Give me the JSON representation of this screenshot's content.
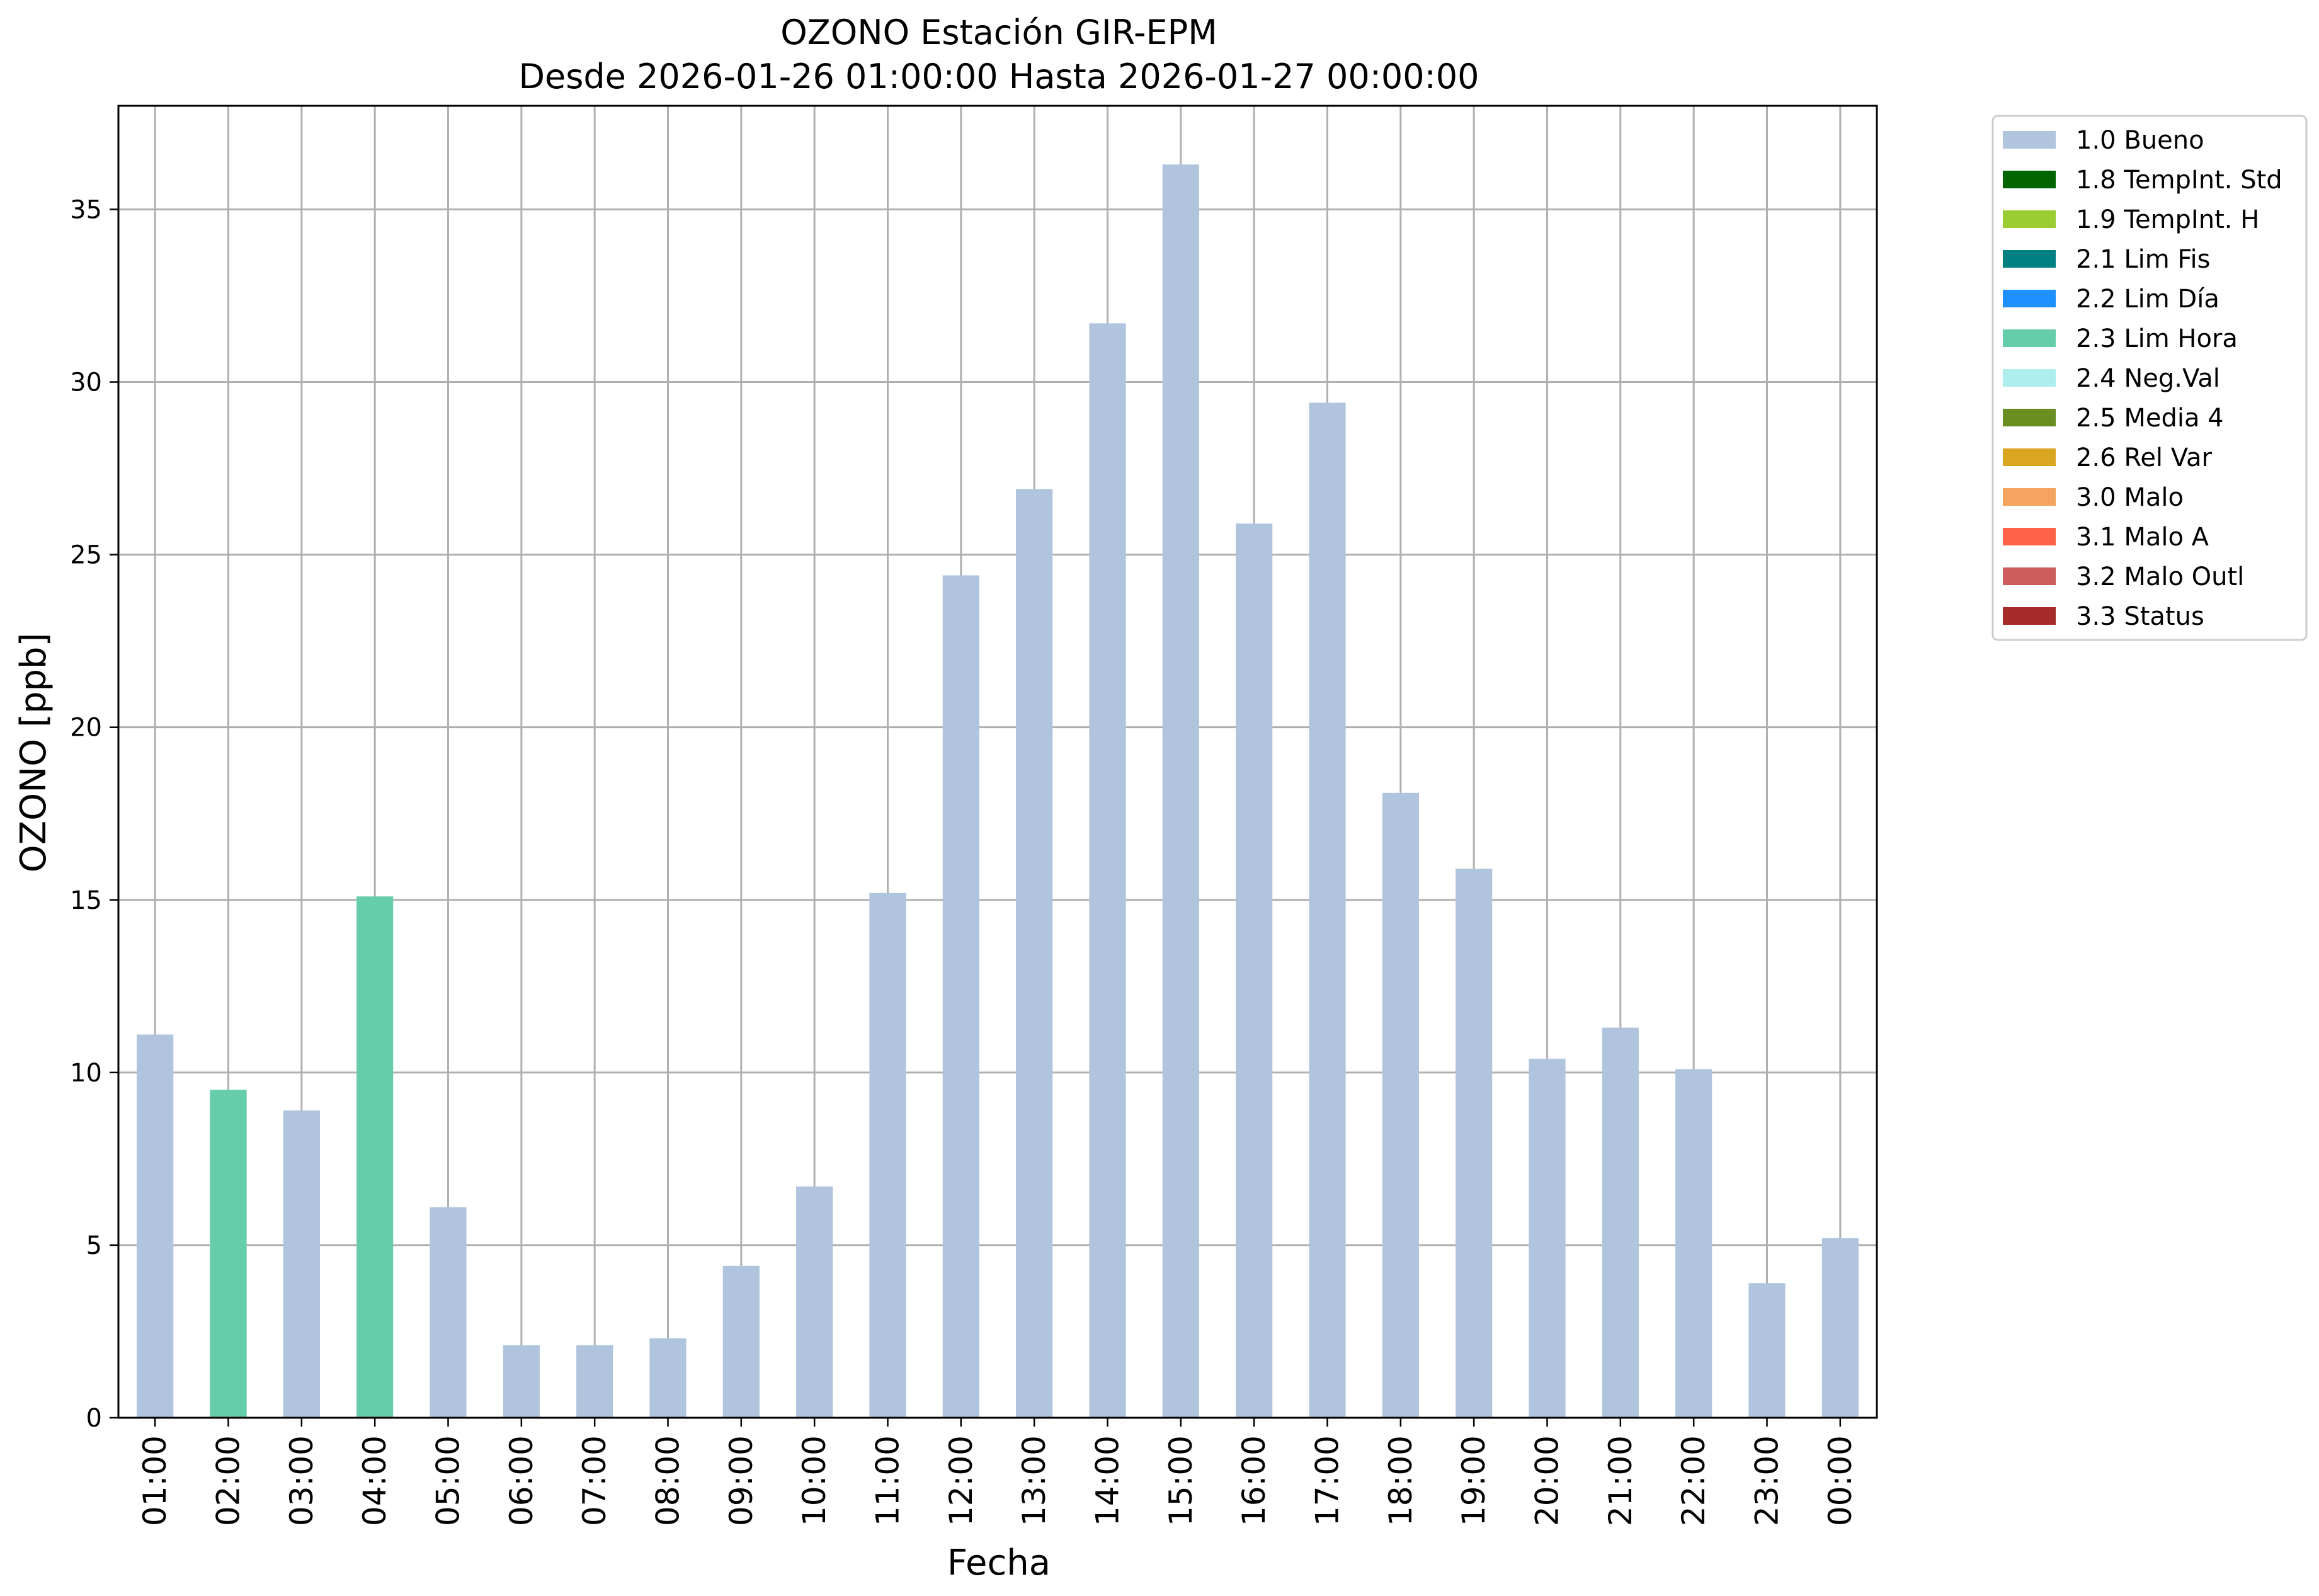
{
  "chart_data": {
    "type": "bar",
    "title": "OZONO Estación GIR-EPM",
    "subtitle": "Desde 2026-01-26 01:00:00 Hasta 2026-01-27 00:00:00",
    "xlabel": "Fecha",
    "ylabel": "OZONO [ppb]",
    "ylim": [
      0,
      38
    ],
    "yticks": [
      0,
      5,
      10,
      15,
      20,
      25,
      30,
      35
    ],
    "grid": true,
    "legend_position": "outside top-right",
    "categories": [
      "01:00",
      "02:00",
      "03:00",
      "04:00",
      "05:00",
      "06:00",
      "07:00",
      "08:00",
      "09:00",
      "10:00",
      "11:00",
      "12:00",
      "13:00",
      "14:00",
      "15:00",
      "16:00",
      "17:00",
      "18:00",
      "19:00",
      "20:00",
      "21:00",
      "22:00",
      "23:00",
      "00:00"
    ],
    "values": [
      11.1,
      9.5,
      8.9,
      15.1,
      6.1,
      2.1,
      2.1,
      2.3,
      4.4,
      6.7,
      15.2,
      24.4,
      26.9,
      31.7,
      36.3,
      25.9,
      29.4,
      18.1,
      15.9,
      10.4,
      11.3,
      10.1,
      3.9,
      5.2
    ],
    "flags": [
      "1.0 Bueno",
      "2.3 Lim Hora",
      "1.0 Bueno",
      "2.3 Lim Hora",
      "1.0 Bueno",
      "1.0 Bueno",
      "1.0 Bueno",
      "1.0 Bueno",
      "1.0 Bueno",
      "1.0 Bueno",
      "1.0 Bueno",
      "1.0 Bueno",
      "1.0 Bueno",
      "1.0 Bueno",
      "1.0 Bueno",
      "1.0 Bueno",
      "1.0 Bueno",
      "1.0 Bueno",
      "1.0 Bueno",
      "1.0 Bueno",
      "1.0 Bueno",
      "1.0 Bueno",
      "1.0 Bueno",
      "1.0 Bueno"
    ],
    "legend": [
      {
        "label": "1.0 Bueno",
        "color": "#b0c4de"
      },
      {
        "label": "1.8 TempInt. Std",
        "color": "#006400"
      },
      {
        "label": "1.9 TempInt. H",
        "color": "#9acd32"
      },
      {
        "label": "2.1 Lim Fis",
        "color": "#008080"
      },
      {
        "label": "2.2 Lim Día",
        "color": "#1e90ff"
      },
      {
        "label": "2.3 Lim Hora",
        "color": "#66cdaa"
      },
      {
        "label": "2.4 Neg.Val",
        "color": "#afeeee"
      },
      {
        "label": "2.5 Media 4",
        "color": "#6b8e23"
      },
      {
        "label": "2.6 Rel Var",
        "color": "#daa520"
      },
      {
        "label": "3.0 Malo",
        "color": "#f4a460"
      },
      {
        "label": "3.1 Malo A",
        "color": "#ff6347"
      },
      {
        "label": "3.2 Malo Outl",
        "color": "#cd5c5c"
      },
      {
        "label": "3.3 Status",
        "color": "#a52a2a"
      }
    ]
  }
}
